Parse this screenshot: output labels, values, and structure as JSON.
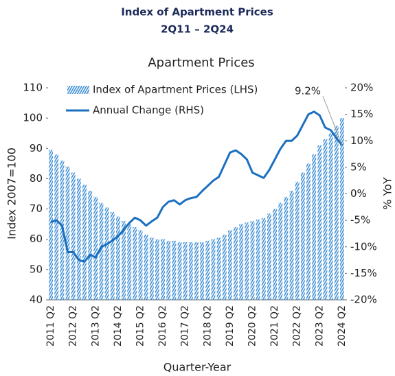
{
  "chart_data": {
    "type": "bar",
    "title": "Index of Apartment Prices",
    "subtitle": "2Q11 – 2Q24",
    "chart_title": "Apartment Prices",
    "ylabel": "Index 2007=100",
    "y2label": "% YoY",
    "xlabel": "Quarter-Year",
    "categories": [
      "2011 Q2",
      null,
      null,
      null,
      "2012 Q2",
      null,
      null,
      null,
      "2013 Q2",
      null,
      null,
      null,
      "2014 Q2",
      null,
      null,
      null,
      "2015 Q2",
      null,
      null,
      null,
      "2016 Q2",
      null,
      null,
      null,
      "2017 Q2",
      null,
      null,
      null,
      "2018 Q2",
      null,
      null,
      null,
      "2019 Q2",
      null,
      null,
      null,
      "2020 Q2",
      null,
      null,
      null,
      "2021 Q2",
      null,
      null,
      null,
      "2022 Q2",
      null,
      null,
      null,
      "2023 Q2",
      null,
      null,
      null,
      "2024 Q2"
    ],
    "series": [
      {
        "name": "Index of Apartment Prices (LHS)",
        "type": "bar",
        "color": "#3f8fd6",
        "values": [
          89.5,
          88,
          86,
          84,
          82,
          80,
          78,
          76,
          74,
          72,
          70.5,
          69,
          67.5,
          66,
          65,
          64,
          63,
          61.5,
          60.5,
          60,
          60,
          59.5,
          59.5,
          59,
          59,
          59,
          59,
          59,
          59.5,
          60,
          60.5,
          61.5,
          63,
          64,
          65,
          65.5,
          66,
          66.5,
          67,
          68.5,
          70,
          72,
          74,
          76,
          79,
          82,
          85,
          88,
          91,
          93,
          95,
          97.5,
          100
        ]
      },
      {
        "name": "Annual Change (RHS)",
        "type": "line",
        "axis": "y2",
        "color": "#1a6fc0",
        "values": [
          -5.3,
          -5,
          -6,
          -11,
          -11,
          -12.5,
          -12.8,
          -11.5,
          -12,
          -10,
          -9.5,
          -8.8,
          -8,
          -6.8,
          -5.5,
          -4.5,
          -5,
          -6,
          -5.2,
          -4.5,
          -2.5,
          -1.5,
          -1.2,
          -2,
          -1.2,
          -0.8,
          -0.6,
          0.5,
          1.5,
          2.5,
          3.2,
          5.5,
          7.8,
          8.2,
          7.5,
          6.5,
          4,
          3.5,
          3,
          4.5,
          6.5,
          8.5,
          10,
          10,
          11,
          13,
          15,
          15.5,
          14.8,
          12.5,
          12,
          10.5,
          9.2
        ]
      }
    ],
    "annotation": "9.2%",
    "ylim": [
      40,
      110
    ],
    "yticks": [
      40,
      50,
      60,
      70,
      80,
      90,
      100,
      110
    ],
    "y2lim": [
      -20,
      20
    ],
    "y2ticks": [
      {
        "value": -20,
        "label": "-20%"
      },
      {
        "value": -15,
        "label": "-15%"
      },
      {
        "value": -10,
        "label": "-10%"
      },
      {
        "value": -5,
        "label": "-5%"
      },
      {
        "value": 0,
        "label": "0%"
      },
      {
        "value": 5,
        "label": "5%"
      },
      {
        "value": 10,
        "label": "10%"
      },
      {
        "value": 15,
        "label": "15%"
      },
      {
        "value": 20,
        "label": "20%"
      }
    ],
    "legend": "upper left",
    "grid": false
  }
}
